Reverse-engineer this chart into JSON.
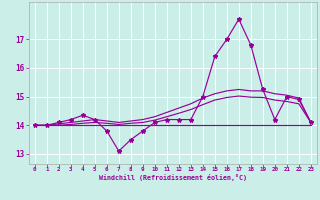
{
  "xlabel": "Windchill (Refroidissement éolien,°C)",
  "bg_color": "#cceee8",
  "grid_color": "#ffffff",
  "line_color": "#990099",
  "hours": [
    0,
    1,
    2,
    3,
    4,
    5,
    6,
    7,
    8,
    9,
    10,
    11,
    12,
    13,
    14,
    15,
    16,
    17,
    18,
    19,
    20,
    21,
    22,
    23
  ],
  "windchill": [
    14.0,
    14.0,
    14.1,
    14.2,
    14.35,
    14.2,
    13.8,
    13.1,
    13.5,
    13.8,
    14.1,
    14.2,
    14.2,
    14.2,
    15.0,
    16.4,
    17.0,
    17.7,
    16.8,
    15.25,
    14.2,
    15.0,
    14.9,
    14.1
  ],
  "smooth_upper": [
    14.0,
    14.0,
    14.05,
    14.1,
    14.15,
    14.2,
    14.15,
    14.1,
    14.15,
    14.2,
    14.3,
    14.45,
    14.6,
    14.75,
    14.95,
    15.1,
    15.2,
    15.25,
    15.2,
    15.2,
    15.1,
    15.05,
    14.95,
    14.1
  ],
  "smooth_lower": [
    14.0,
    14.0,
    14.0,
    14.03,
    14.07,
    14.1,
    14.07,
    14.03,
    14.07,
    14.1,
    14.18,
    14.3,
    14.42,
    14.55,
    14.72,
    14.88,
    14.97,
    15.02,
    14.98,
    14.97,
    14.88,
    14.83,
    14.75,
    14.1
  ],
  "flat_line": [
    14.0,
    14.0,
    14.0,
    14.0,
    14.0,
    14.0,
    14.0,
    14.0,
    14.0,
    14.0,
    14.0,
    14.0,
    14.0,
    14.0,
    14.0,
    14.0,
    14.0,
    14.0,
    14.0,
    14.0,
    14.0,
    14.0,
    14.0,
    14.0
  ],
  "ylim": [
    12.65,
    18.3
  ],
  "yticks": [
    13,
    14,
    15,
    16,
    17
  ],
  "xticks": [
    0,
    1,
    2,
    3,
    4,
    5,
    6,
    7,
    8,
    9,
    10,
    11,
    12,
    13,
    14,
    15,
    16,
    17,
    18,
    19,
    20,
    21,
    22,
    23
  ]
}
